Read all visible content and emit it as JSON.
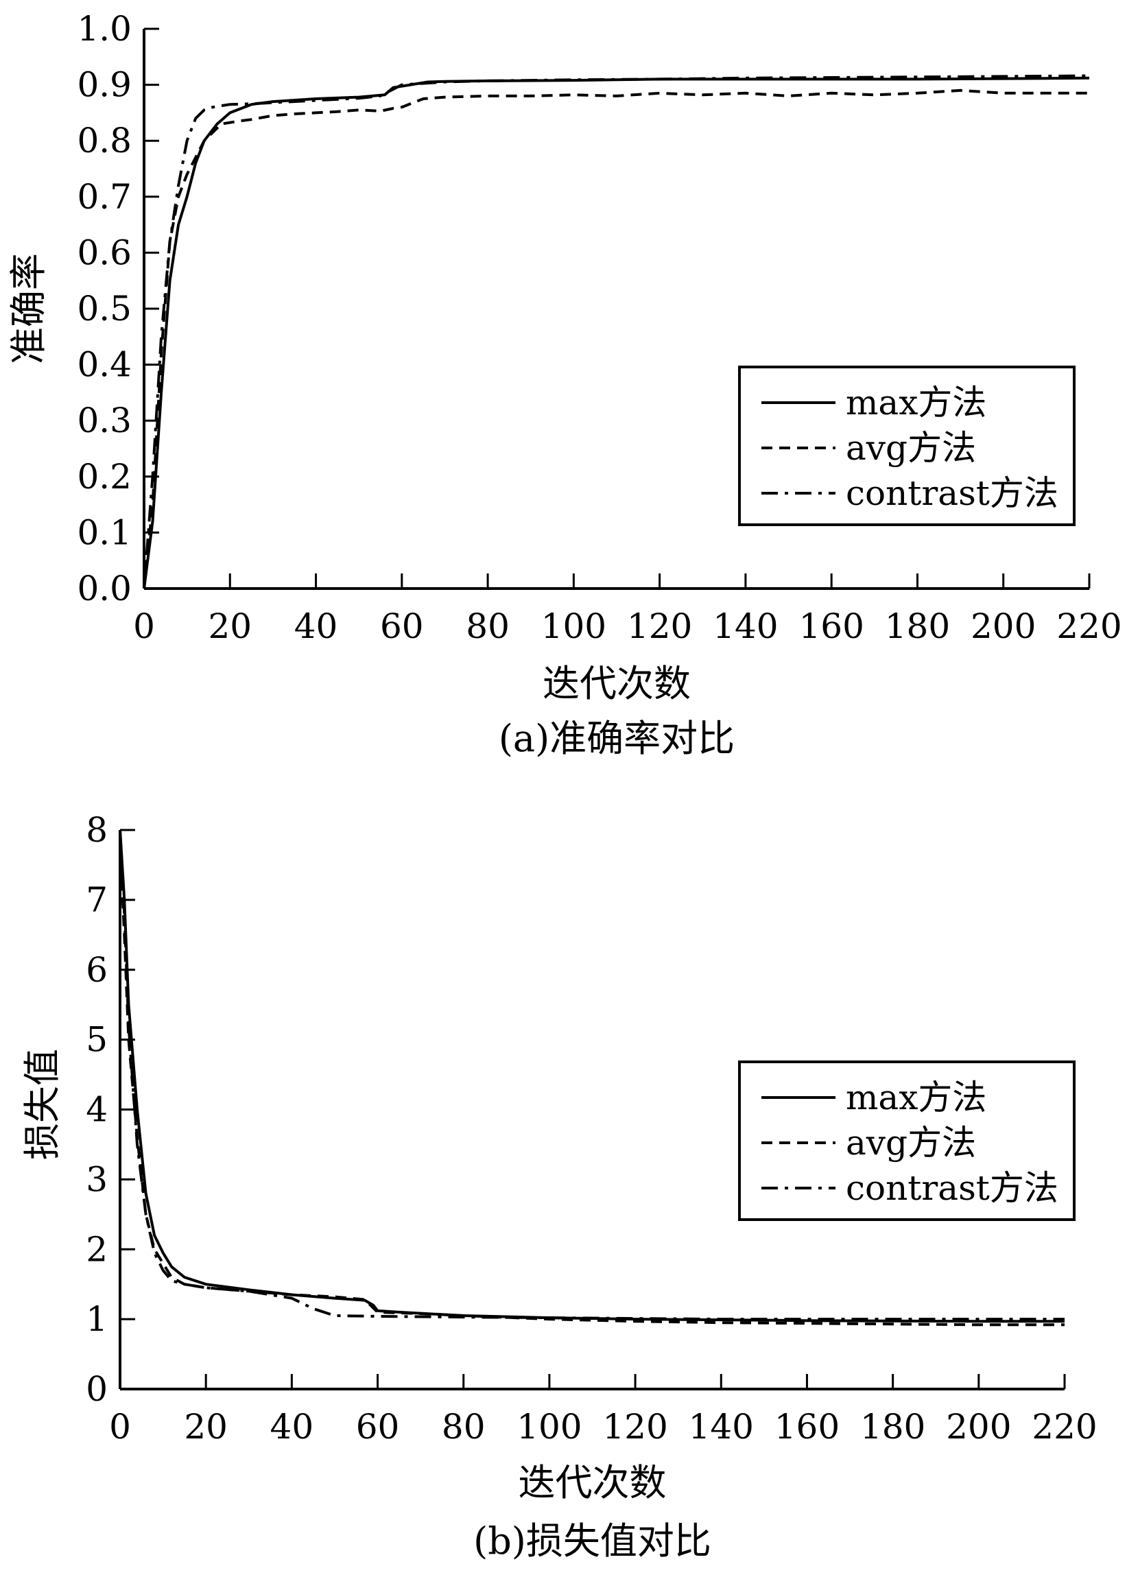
{
  "chart_data": [
    {
      "type": "line",
      "title": "",
      "caption": "(a)准确率对比",
      "xlabel": "迭代次数",
      "ylabel": "准确率",
      "xlim": [
        0,
        220
      ],
      "ylim": [
        0.0,
        1.0
      ],
      "x_ticks": [
        0,
        20,
        40,
        60,
        80,
        100,
        120,
        140,
        160,
        180,
        200,
        220
      ],
      "y_ticks": [
        "0.0",
        "0.1",
        "0.2",
        "0.3",
        "0.4",
        "0.5",
        "0.6",
        "0.7",
        "0.8",
        "0.9",
        "1.0"
      ],
      "grid": false,
      "legend": {
        "position": "right-center"
      },
      "series": [
        {
          "name": "max方法",
          "style": "solid",
          "points": [
            [
              0,
              0.0
            ],
            [
              2,
              0.12
            ],
            [
              4,
              0.35
            ],
            [
              6,
              0.55
            ],
            [
              8,
              0.65
            ],
            [
              10,
              0.7
            ],
            [
              12,
              0.76
            ],
            [
              14,
              0.8
            ],
            [
              17,
              0.83
            ],
            [
              20,
              0.85
            ],
            [
              25,
              0.865
            ],
            [
              30,
              0.87
            ],
            [
              40,
              0.875
            ],
            [
              50,
              0.878
            ],
            [
              56,
              0.882
            ],
            [
              58,
              0.895
            ],
            [
              62,
              0.9
            ],
            [
              66,
              0.905
            ],
            [
              70,
              0.906
            ],
            [
              80,
              0.907
            ],
            [
              100,
              0.908
            ],
            [
              120,
              0.91
            ],
            [
              140,
              0.91
            ],
            [
              160,
              0.91
            ],
            [
              180,
              0.91
            ],
            [
              200,
              0.911
            ],
            [
              220,
              0.912
            ]
          ]
        },
        {
          "name": "avg方法",
          "style": "dashed",
          "points": [
            [
              0,
              0.0
            ],
            [
              2,
              0.15
            ],
            [
              4,
              0.42
            ],
            [
              6,
              0.62
            ],
            [
              8,
              0.7
            ],
            [
              10,
              0.74
            ],
            [
              14,
              0.8
            ],
            [
              18,
              0.83
            ],
            [
              22,
              0.835
            ],
            [
              25,
              0.838
            ],
            [
              30,
              0.845
            ],
            [
              35,
              0.848
            ],
            [
              40,
              0.85
            ],
            [
              45,
              0.852
            ],
            [
              50,
              0.855
            ],
            [
              55,
              0.853
            ],
            [
              58,
              0.858
            ],
            [
              60,
              0.86
            ],
            [
              65,
              0.875
            ],
            [
              70,
              0.878
            ],
            [
              80,
              0.88
            ],
            [
              90,
              0.88
            ],
            [
              100,
              0.882
            ],
            [
              110,
              0.88
            ],
            [
              120,
              0.885
            ],
            [
              130,
              0.882
            ],
            [
              140,
              0.885
            ],
            [
              150,
              0.88
            ],
            [
              160,
              0.885
            ],
            [
              170,
              0.882
            ],
            [
              180,
              0.885
            ],
            [
              190,
              0.89
            ],
            [
              200,
              0.885
            ],
            [
              210,
              0.885
            ],
            [
              220,
              0.885
            ]
          ]
        },
        {
          "name": "contrast方法",
          "style": "dashdot",
          "points": [
            [
              0,
              0.0
            ],
            [
              2,
              0.2
            ],
            [
              4,
              0.45
            ],
            [
              6,
              0.62
            ],
            [
              8,
              0.72
            ],
            [
              10,
              0.8
            ],
            [
              12,
              0.84
            ],
            [
              14,
              0.855
            ],
            [
              16,
              0.86
            ],
            [
              20,
              0.865
            ],
            [
              25,
              0.866
            ],
            [
              30,
              0.868
            ],
            [
              40,
              0.872
            ],
            [
              50,
              0.876
            ],
            [
              55,
              0.88
            ],
            [
              60,
              0.9
            ],
            [
              70,
              0.905
            ],
            [
              80,
              0.907
            ],
            [
              100,
              0.909
            ],
            [
              120,
              0.91
            ],
            [
              140,
              0.912
            ],
            [
              160,
              0.913
            ],
            [
              180,
              0.914
            ],
            [
              200,
              0.915
            ],
            [
              220,
              0.916
            ]
          ]
        }
      ]
    },
    {
      "type": "line",
      "title": "",
      "caption": "(b)损失值对比",
      "xlabel": "迭代次数",
      "ylabel": "损失值",
      "xlim": [
        0,
        220
      ],
      "ylim": [
        0,
        8
      ],
      "x_ticks": [
        0,
        20,
        40,
        60,
        80,
        100,
        120,
        140,
        160,
        180,
        200,
        220
      ],
      "y_ticks": [
        "0",
        "1",
        "2",
        "3",
        "4",
        "5",
        "6",
        "7",
        "8"
      ],
      "grid": false,
      "legend": {
        "position": "right-center"
      },
      "series": [
        {
          "name": "max方法",
          "style": "solid",
          "points": [
            [
              0,
              8.0
            ],
            [
              1,
              7.0
            ],
            [
              2,
              5.5
            ],
            [
              4,
              4.0
            ],
            [
              6,
              2.8
            ],
            [
              8,
              2.2
            ],
            [
              10,
              1.95
            ],
            [
              12,
              1.75
            ],
            [
              15,
              1.6
            ],
            [
              20,
              1.5
            ],
            [
              30,
              1.42
            ],
            [
              40,
              1.35
            ],
            [
              50,
              1.3
            ],
            [
              57,
              1.27
            ],
            [
              59,
              1.2
            ],
            [
              60,
              1.12
            ],
            [
              65,
              1.1
            ],
            [
              80,
              1.05
            ],
            [
              100,
              1.02
            ],
            [
              120,
              1.0
            ],
            [
              140,
              0.99
            ],
            [
              160,
              0.98
            ],
            [
              180,
              0.975
            ],
            [
              200,
              0.97
            ],
            [
              220,
              0.97
            ]
          ]
        },
        {
          "name": "avg方法",
          "style": "dashed",
          "points": [
            [
              0,
              7.8
            ],
            [
              1,
              6.5
            ],
            [
              2,
              5.0
            ],
            [
              4,
              3.6
            ],
            [
              6,
              2.5
            ],
            [
              8,
              2.0
            ],
            [
              10,
              1.8
            ],
            [
              12,
              1.6
            ],
            [
              15,
              1.5
            ],
            [
              20,
              1.45
            ],
            [
              30,
              1.4
            ],
            [
              40,
              1.35
            ],
            [
              50,
              1.32
            ],
            [
              57,
              1.28
            ],
            [
              60,
              1.1
            ],
            [
              70,
              1.08
            ],
            [
              80,
              1.05
            ],
            [
              100,
              1.0
            ],
            [
              120,
              0.97
            ],
            [
              140,
              0.95
            ],
            [
              160,
              0.94
            ],
            [
              180,
              0.93
            ],
            [
              200,
              0.92
            ],
            [
              220,
              0.92
            ]
          ]
        },
        {
          "name": "contrast方法",
          "style": "dashdot",
          "points": [
            [
              0,
              8.0
            ],
            [
              1,
              6.8
            ],
            [
              2,
              5.2
            ],
            [
              4,
              3.5
            ],
            [
              6,
              2.5
            ],
            [
              8,
              1.95
            ],
            [
              10,
              1.7
            ],
            [
              12,
              1.55
            ],
            [
              15,
              1.5
            ],
            [
              20,
              1.45
            ],
            [
              30,
              1.4
            ],
            [
              40,
              1.3
            ],
            [
              45,
              1.15
            ],
            [
              50,
              1.05
            ],
            [
              60,
              1.04
            ],
            [
              80,
              1.03
            ],
            [
              100,
              1.02
            ],
            [
              120,
              1.01
            ],
            [
              140,
              1.0
            ],
            [
              160,
              1.0
            ],
            [
              180,
              1.0
            ],
            [
              200,
              1.0
            ],
            [
              220,
              1.0
            ]
          ]
        }
      ]
    }
  ]
}
